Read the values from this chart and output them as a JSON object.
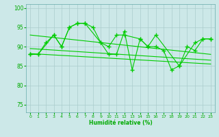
{
  "zigzag_x": [
    0,
    1,
    2,
    3,
    4,
    5,
    6,
    7,
    8,
    9,
    10,
    11,
    12,
    13,
    14,
    15,
    16,
    17,
    18,
    19,
    20,
    21,
    22,
    23
  ],
  "zigzag_y": [
    88,
    88,
    91,
    93,
    90,
    95,
    96,
    96,
    95,
    91,
    88,
    88,
    94,
    84,
    92,
    90,
    90,
    89,
    84,
    85,
    90,
    89,
    92,
    92
  ],
  "smooth_x": [
    0,
    1,
    3,
    4,
    5,
    6,
    7,
    9,
    10,
    11,
    12,
    14,
    15,
    16,
    19,
    21,
    22,
    23
  ],
  "smooth_y": [
    88,
    88,
    93,
    90,
    95,
    96,
    96,
    91,
    90,
    93,
    93,
    92,
    90,
    93,
    85,
    91,
    92,
    92
  ],
  "trend1_x": [
    0,
    23
  ],
  "trend1_y": [
    93.0,
    88.0
  ],
  "trend2_x": [
    0,
    23
  ],
  "trend2_y": [
    89.5,
    86.5
  ],
  "trend3_x": [
    0,
    23
  ],
  "trend3_y": [
    88.2,
    85.5
  ],
  "ylim": [
    73,
    101
  ],
  "yticks": [
    75,
    80,
    85,
    90,
    95,
    100
  ],
  "xlim": [
    -0.5,
    23.5
  ],
  "xticks": [
    0,
    1,
    2,
    3,
    4,
    5,
    6,
    7,
    8,
    9,
    10,
    11,
    12,
    13,
    14,
    15,
    16,
    17,
    18,
    19,
    20,
    21,
    22,
    23
  ],
  "xlabel": "Humidité relative (%)",
  "line_color": "#00cc00",
  "bg_color": "#cce8e8",
  "grid_color": "#aacccc",
  "axis_label_color": "#00aa00",
  "tick_color": "#00aa00"
}
